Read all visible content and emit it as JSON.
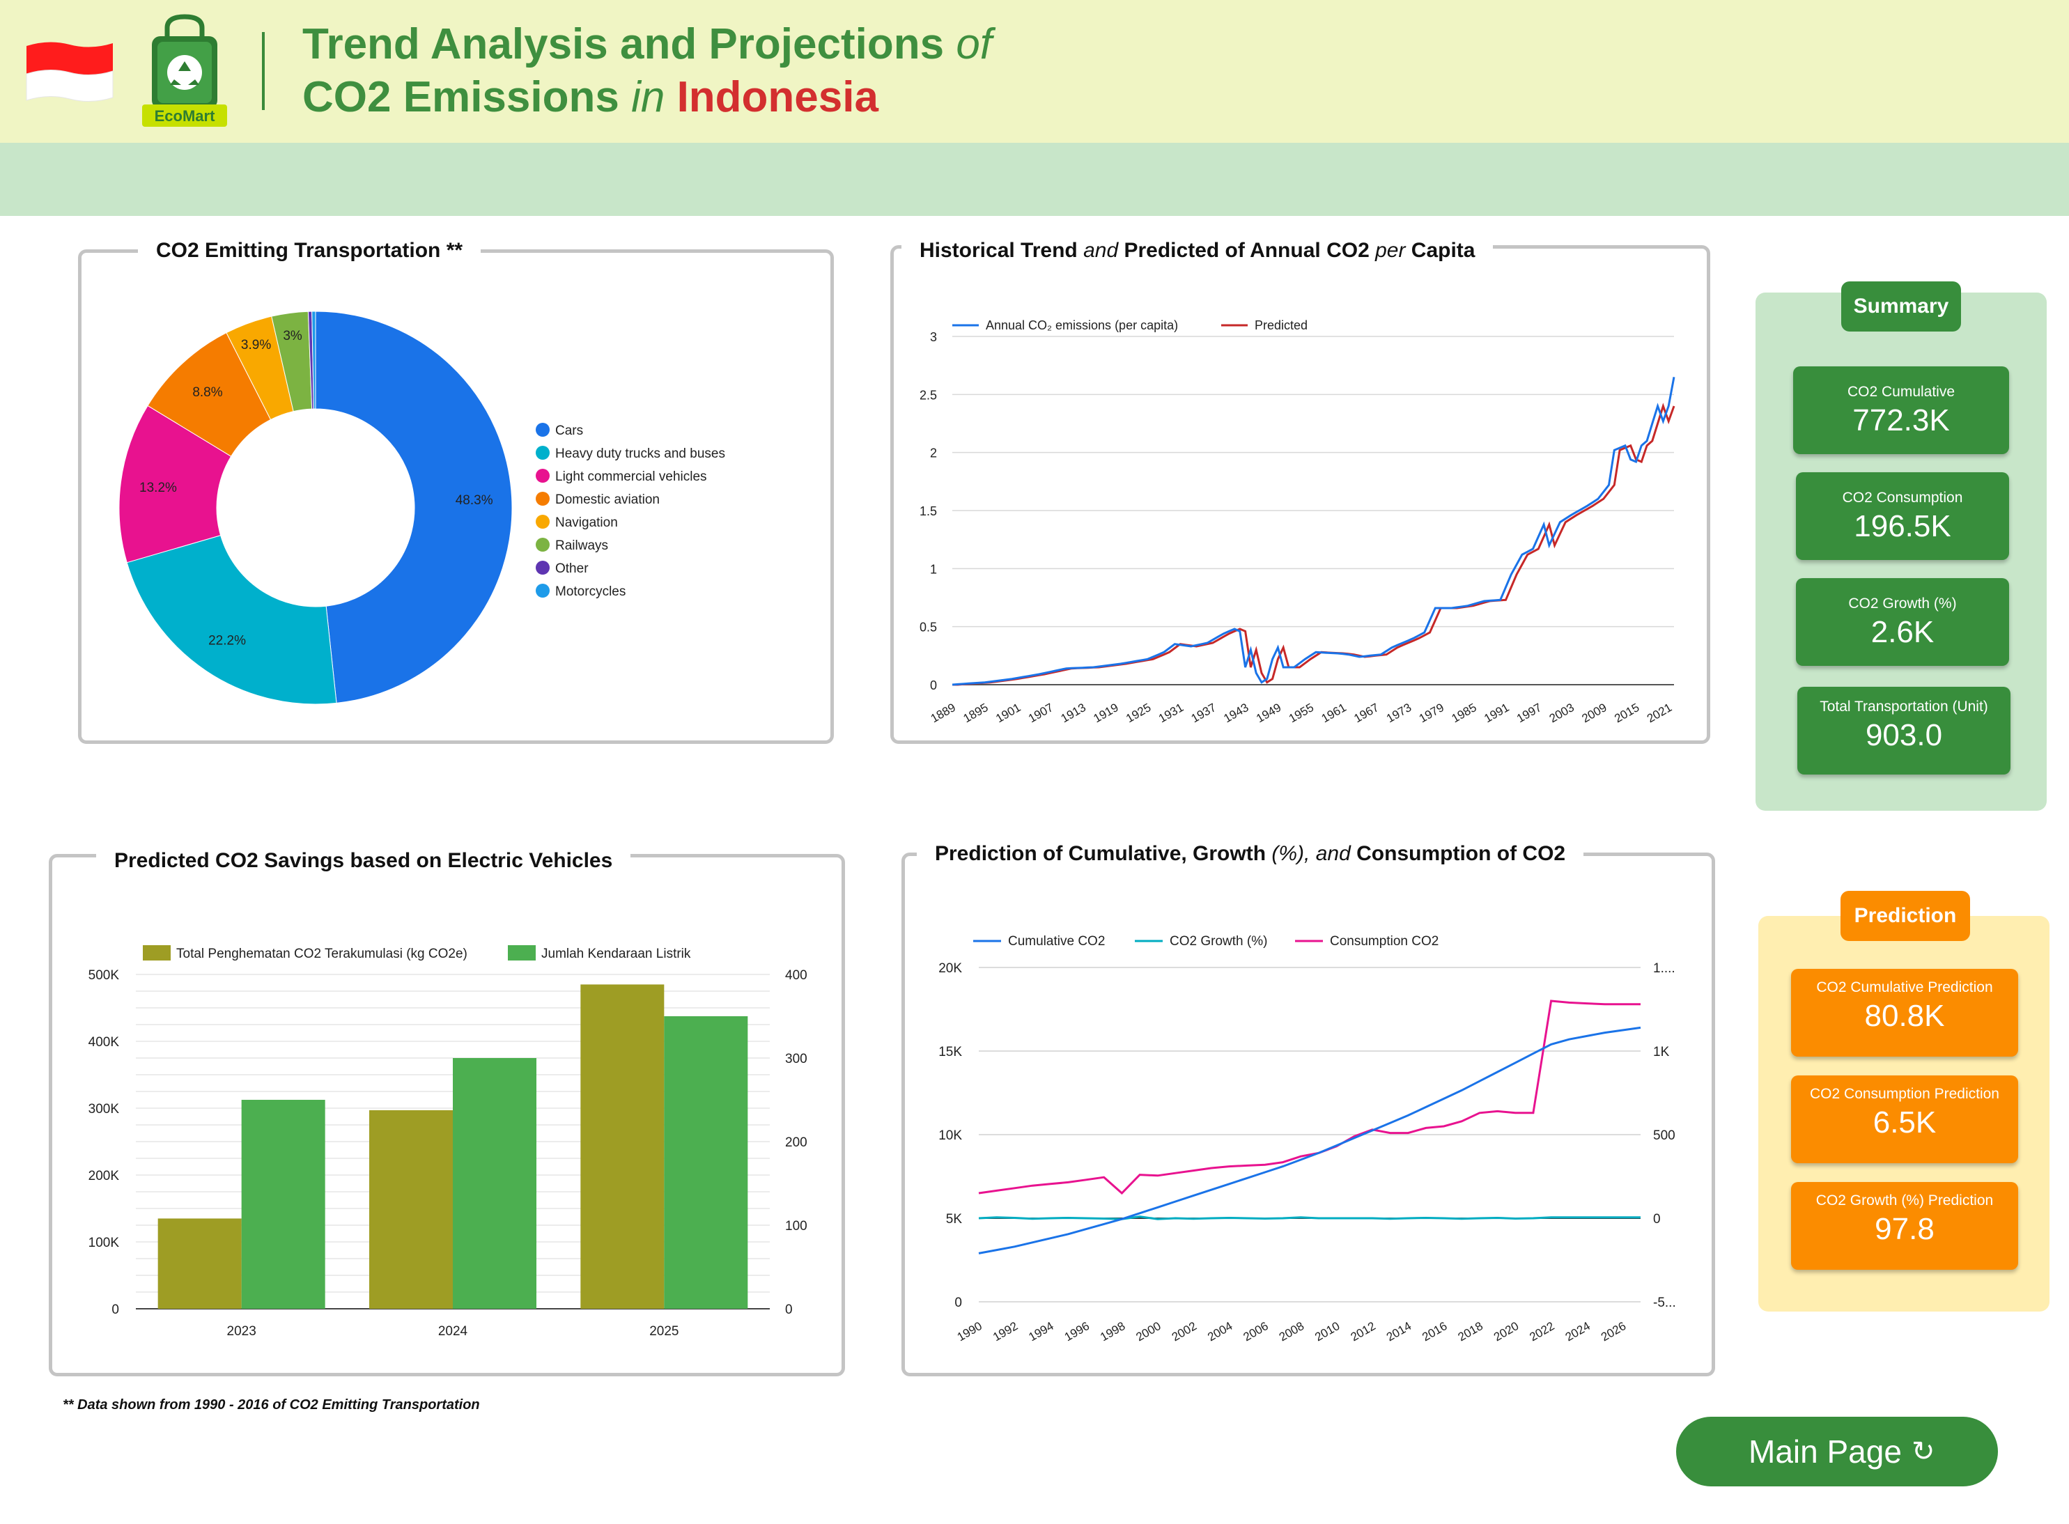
{
  "header": {
    "title_line1_main": "Trend Analysis and Projections",
    "title_line1_italic": "of",
    "title_line2_main": "CO2 Emissions",
    "title_line2_italic": "in",
    "title_line2_country": "Indonesia",
    "logo_text": "EcoMart",
    "flag_colors": [
      "#ff1c1c",
      "#ffffff"
    ],
    "brand_green": "#3f8f3f"
  },
  "panels": {
    "transport": {
      "title": "CO2 Emitting Transportation **"
    },
    "historical": {
      "title_a": "Historical Trend",
      "title_b": "and",
      "title_c": "Predicted of Annual CO2",
      "title_d": "per",
      "title_e": "Capita"
    },
    "savings": {
      "title": "Predicted CO2 Savings based on Electric Vehicles"
    },
    "prediction": {
      "title_a": "Prediction of Cumulative, Growth",
      "title_b": "(%),",
      "title_c": "and",
      "title_d": "Consumption of CO2"
    }
  },
  "summary": {
    "badge": "Summary",
    "cards": [
      {
        "label": "CO2 Cumulative",
        "value": "772.3K"
      },
      {
        "label": "CO2 Consumption",
        "value": "196.5K"
      },
      {
        "label": "CO2 Growth (%)",
        "value": "2.6K"
      },
      {
        "label": "Total Transportation (Unit)",
        "value": "903.0"
      }
    ]
  },
  "prediction_panel": {
    "badge": "Prediction",
    "cards": [
      {
        "label": "CO2 Cumulative Prediction",
        "value": "80.8K"
      },
      {
        "label": "CO2 Consumption Prediction",
        "value": "6.5K"
      },
      {
        "label": "CO2 Growth (%) Prediction",
        "value": "97.8"
      }
    ]
  },
  "footnote": "** Data shown from 1990 - 2016 of CO2 Emitting Transportation",
  "main_button": {
    "label": "Main Page",
    "icon": "refresh-icon"
  },
  "chart_data": [
    {
      "type": "pie",
      "subtype": "donut",
      "labels": [
        "Cars",
        "Heavy duty trucks and buses",
        "Light commercial vehicles",
        "Domestic aviation",
        "Navigation",
        "Railways",
        "Other",
        "Motorcycles"
      ],
      "values": [
        48.3,
        22.2,
        13.2,
        8.8,
        3.9,
        3.0,
        0.3,
        0.3
      ],
      "value_labels": [
        "48.3%",
        "22.2%",
        "13.2%",
        "8.8%",
        "3.9%",
        "3%",
        "",
        ""
      ],
      "colors": [
        "#1a73e8",
        "#00b0cc",
        "#e8128f",
        "#f57c00",
        "#f9a800",
        "#7cb342",
        "#5e35b1",
        "#1e9be9"
      ],
      "legend_position": "right"
    },
    {
      "type": "line",
      "series_names": [
        "Annual CO₂ emissions (per capita)",
        "Predicted"
      ],
      "colors": [
        "#1a73e8",
        "#c62828"
      ],
      "x_ticks": [
        "1889",
        "1895",
        "1901",
        "1907",
        "1913",
        "1919",
        "1925",
        "1931",
        "1937",
        "1943",
        "1949",
        "1955",
        "1961",
        "1967",
        "1973",
        "1979",
        "1985",
        "1991",
        "1997",
        "2003",
        "2009",
        "2015",
        "2021"
      ],
      "xlim": [
        1889,
        2022
      ],
      "ylim": [
        0,
        3
      ],
      "y_ticks": [
        "0",
        "0.5",
        "1",
        "1.5",
        "2",
        "2.5",
        "3"
      ],
      "anchors": [
        [
          1889,
          0.0
        ],
        [
          1895,
          0.02
        ],
        [
          1900,
          0.05
        ],
        [
          1905,
          0.09
        ],
        [
          1910,
          0.14
        ],
        [
          1915,
          0.15
        ],
        [
          1920,
          0.18
        ],
        [
          1925,
          0.22
        ],
        [
          1928,
          0.28
        ],
        [
          1930,
          0.35
        ],
        [
          1933,
          0.33
        ],
        [
          1936,
          0.36
        ],
        [
          1939,
          0.44
        ],
        [
          1941,
          0.48
        ],
        [
          1942,
          0.46
        ],
        [
          1943,
          0.15
        ],
        [
          1944,
          0.3
        ],
        [
          1945,
          0.1
        ],
        [
          1946,
          0.02
        ],
        [
          1947,
          0.05
        ],
        [
          1948,
          0.22
        ],
        [
          1949,
          0.32
        ],
        [
          1950,
          0.15
        ],
        [
          1952,
          0.15
        ],
        [
          1954,
          0.22
        ],
        [
          1956,
          0.28
        ],
        [
          1960,
          0.27
        ],
        [
          1962,
          0.26
        ],
        [
          1964,
          0.24
        ],
        [
          1968,
          0.26
        ],
        [
          1970,
          0.32
        ],
        [
          1974,
          0.4
        ],
        [
          1976,
          0.45
        ],
        [
          1978,
          0.66
        ],
        [
          1981,
          0.66
        ],
        [
          1984,
          0.68
        ],
        [
          1987,
          0.72
        ],
        [
          1990,
          0.73
        ],
        [
          1992,
          0.95
        ],
        [
          1994,
          1.12
        ],
        [
          1996,
          1.17
        ],
        [
          1998,
          1.38
        ],
        [
          1999,
          1.2
        ],
        [
          2001,
          1.4
        ],
        [
          2003,
          1.46
        ],
        [
          2006,
          1.54
        ],
        [
          2008,
          1.6
        ],
        [
          2010,
          1.72
        ],
        [
          2011,
          2.02
        ],
        [
          2013,
          2.06
        ],
        [
          2014,
          1.94
        ],
        [
          2015,
          1.92
        ],
        [
          2016,
          2.06
        ],
        [
          2017,
          2.1
        ],
        [
          2018,
          2.25
        ],
        [
          2019,
          2.4
        ],
        [
          2020,
          2.27
        ],
        [
          2021,
          2.4
        ],
        [
          2022,
          2.65
        ]
      ],
      "grid": true,
      "legend_position": "top-left"
    },
    {
      "type": "bar",
      "categories": [
        "2023",
        "2024",
        "2025"
      ],
      "series": [
        {
          "name": "Total Penghematan CO2 Terakumulasi (kg CO2e)",
          "values": [
            135000,
            297000,
            485000
          ],
          "axis": "left",
          "color": "#9e9d24"
        },
        {
          "name": "Jumlah Kendaraan Listrik",
          "values": [
            250,
            300,
            350
          ],
          "axis": "right",
          "color": "#4caf50"
        }
      ],
      "y_left_ticks": [
        "0",
        "100K",
        "200K",
        "300K",
        "400K",
        "500K"
      ],
      "y_right_ticks": [
        "0",
        "100",
        "200",
        "300",
        "400"
      ],
      "ylim_left": [
        0,
        500000
      ],
      "ylim_right": [
        0,
        400
      ],
      "legend_position": "top-left",
      "grid": true
    },
    {
      "type": "line",
      "series": [
        {
          "name": "Cumulative CO2",
          "axis": "left",
          "color": "#1a73e8"
        },
        {
          "name": "CO2 Growth (%)",
          "axis": "right",
          "color": "#00acc1"
        },
        {
          "name": "Consumption CO2",
          "axis": "left",
          "color": "#e8128f"
        }
      ],
      "x": [
        1990,
        1991,
        1992,
        1993,
        1994,
        1995,
        1996,
        1997,
        1998,
        1999,
        2000,
        2001,
        2002,
        2003,
        2004,
        2005,
        2006,
        2007,
        2008,
        2009,
        2010,
        2011,
        2012,
        2013,
        2014,
        2015,
        2016,
        2017,
        2018,
        2019,
        2020,
        2021,
        2022,
        2023,
        2024,
        2025,
        2026,
        2027
      ],
      "x_ticks": [
        "1990",
        "1992",
        "1994",
        "1996",
        "1998",
        "2000",
        "2002",
        "2004",
        "2006",
        "2008",
        "2010",
        "2012",
        "2014",
        "2016",
        "2018",
        "2020",
        "2022",
        "2024",
        "2026"
      ],
      "cumulative": [
        2900,
        3100,
        3300,
        3550,
        3800,
        4050,
        4350,
        4650,
        4950,
        5300,
        5650,
        6000,
        6350,
        6700,
        7050,
        7400,
        7750,
        8100,
        8500,
        8900,
        9350,
        9800,
        10250,
        10700,
        11150,
        11650,
        12150,
        12650,
        13200,
        13750,
        14300,
        14850,
        15400,
        15700,
        15900,
        16100,
        16250,
        16400
      ],
      "consumption": [
        6500,
        6650,
        6800,
        6950,
        7050,
        7150,
        7300,
        7450,
        6500,
        7600,
        7550,
        7700,
        7850,
        8000,
        8100,
        8150,
        8200,
        8350,
        8700,
        8900,
        9300,
        9900,
        10300,
        10100,
        10100,
        10400,
        10500,
        10800,
        11300,
        11400,
        11300,
        11300,
        18000,
        17900,
        17850,
        17800,
        17800,
        17800
      ],
      "growth": [
        0,
        5,
        2,
        -3,
        0,
        2,
        0,
        -2,
        -5,
        10,
        -5,
        0,
        -3,
        0,
        2,
        0,
        -2,
        0,
        5,
        0,
        0,
        0,
        0,
        -3,
        0,
        2,
        0,
        -3,
        0,
        2,
        -2,
        0,
        5,
        5,
        5,
        5,
        5,
        5
      ],
      "y_left_ticks": [
        "0",
        "5K",
        "10K",
        "15K",
        "20K"
      ],
      "y_right_ticks": [
        "-5...",
        "0",
        "500",
        "1K",
        "1...."
      ],
      "ylim_left": [
        0,
        20000
      ],
      "ylim_right": [
        -500,
        1500
      ],
      "legend_position": "top-left",
      "grid": true
    }
  ]
}
